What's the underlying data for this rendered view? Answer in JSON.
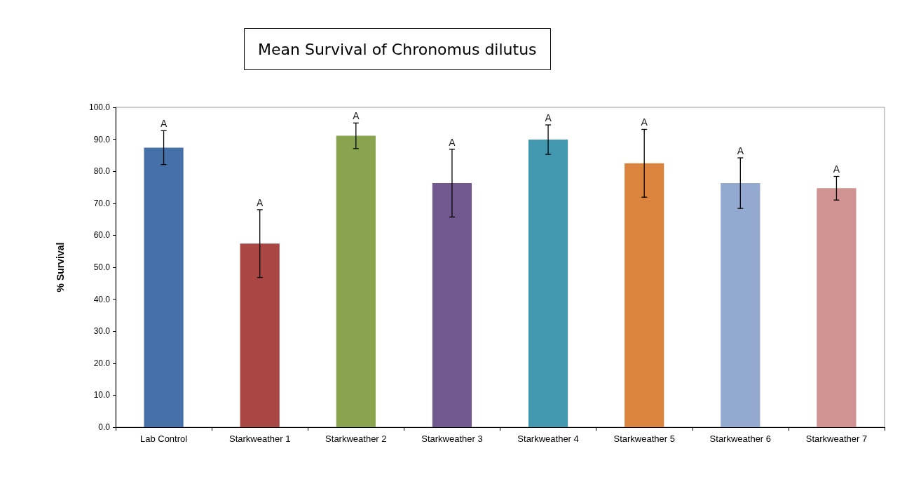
{
  "chart_data": {
    "type": "bar",
    "title": "Mean Survival of Chronomus dilutus",
    "ylabel": "% Survival",
    "categories": [
      "Lab Control",
      "Starkweather 1",
      "Starkweather 2",
      "Starkweather 3",
      "Starkweather 4",
      "Starkweather 5",
      "Starkweather 6",
      "Starkweather 7"
    ],
    "values": [
      87.4,
      57.4,
      91.1,
      76.3,
      89.9,
      82.5,
      76.3,
      74.7
    ],
    "errors": [
      5.3,
      10.6,
      4.0,
      10.6,
      4.6,
      10.6,
      7.9,
      3.7
    ],
    "colors": [
      "#4571a8",
      "#aa4644",
      "#89a44e",
      "#71588f",
      "#4298af",
      "#db843d",
      "#93a9cf",
      "#d19392"
    ],
    "ylim": [
      0,
      100
    ],
    "yticks": [
      {
        "value": 0,
        "label": "0.0"
      },
      {
        "value": 10,
        "label": "10.0"
      },
      {
        "value": 20,
        "label": "20.0"
      },
      {
        "value": 30,
        "label": "30.0"
      },
      {
        "value": 40,
        "label": "40.0"
      },
      {
        "value": 50,
        "label": "50.0"
      },
      {
        "value": 60,
        "label": "60.0"
      },
      {
        "value": 70,
        "label": "70.0"
      },
      {
        "value": 80,
        "label": "80.0"
      },
      {
        "value": 90,
        "label": "90.0"
      },
      {
        "value": 100,
        "label": "100.0"
      }
    ],
    "annotations": [
      {
        "text": "A",
        "x": "Lab Control",
        "y": 92.7
      },
      {
        "text": "A",
        "x": "Starkweather 1",
        "y": 68.0
      },
      {
        "text": "A",
        "x": "Starkweather 2",
        "y": 95.1
      },
      {
        "text": "A",
        "x": "Starkweather 3",
        "y": 86.9
      },
      {
        "text": "A",
        "x": "Starkweather 4",
        "y": 94.5
      },
      {
        "text": "A",
        "x": "Starkweather 5",
        "y": 93.1
      },
      {
        "text": "A",
        "x": "Starkweather 6",
        "y": 84.2
      },
      {
        "text": "A",
        "x": "Starkweather 7",
        "y": 78.4
      }
    ],
    "grid": false
  }
}
